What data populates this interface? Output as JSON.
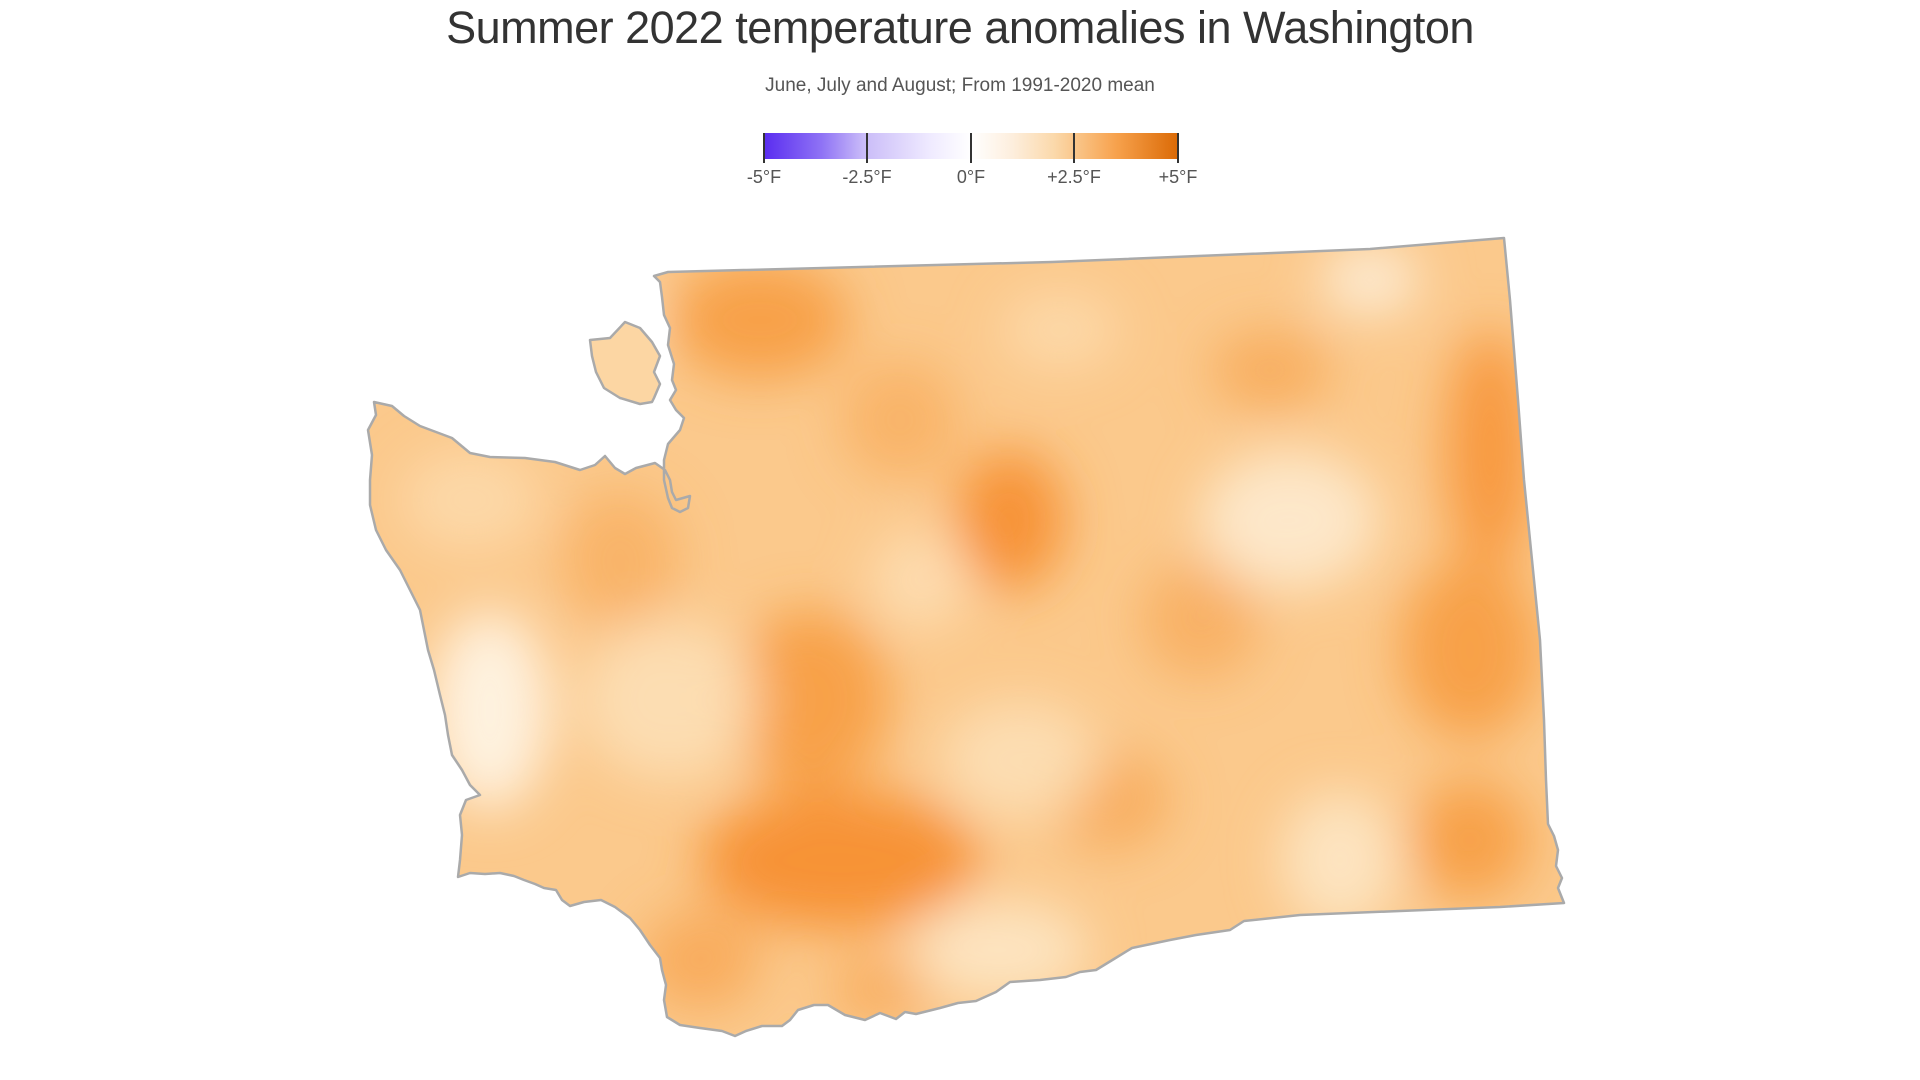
{
  "title": "Summer 2022 temperature anomalies in Washington",
  "subtitle": "June, July and August; From 1991-2020 mean",
  "legend": {
    "ticks": [
      {
        "label": "-5°F",
        "value": -5
      },
      {
        "label": "-2.5°F",
        "value": -2.5
      },
      {
        "label": "0°F",
        "value": 0
      },
      {
        "label": "+2.5°F",
        "value": 2.5
      },
      {
        "label": "+5°F",
        "value": 5
      }
    ],
    "colors": {
      "cold_end": "#5a2df0",
      "neutral": "#ffffff",
      "warm_end": "#db6a06"
    }
  },
  "map": {
    "region": "Washington",
    "outline_color": "#aaaaaa",
    "base_fill": "#fbc98c",
    "warm_patch_color": "#f79a3c",
    "cool_patch_color": "#fde9cc"
  }
}
